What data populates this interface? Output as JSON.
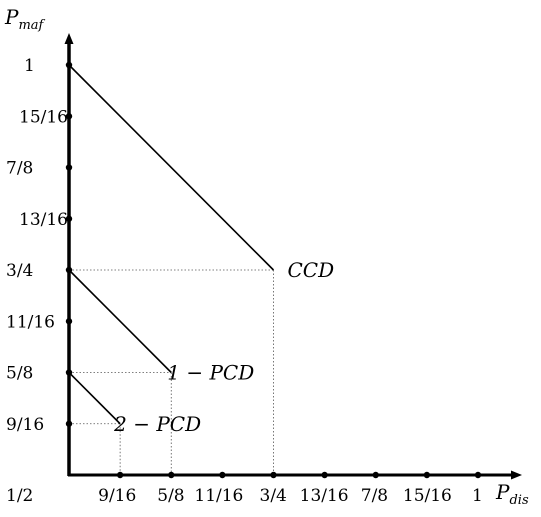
{
  "chart_data": {
    "type": "line",
    "x_axis": {
      "label_main": "P",
      "label_sub": "dis",
      "range": [
        0.5,
        1.0
      ],
      "ticks": [
        0.5625,
        0.625,
        0.6875,
        0.75,
        0.8125,
        0.875,
        0.9375,
        1.0
      ],
      "tick_labels": [
        "9/16",
        "5/8",
        "11/16",
        "3/4",
        "13/16",
        "7/8",
        "15/16",
        "1"
      ]
    },
    "y_axis": {
      "label_main": "P",
      "label_sub": "maf",
      "range": [
        0.5,
        1.0
      ],
      "ticks": [
        0.5625,
        0.625,
        0.6875,
        0.75,
        0.8125,
        0.875,
        0.9375,
        1.0
      ],
      "tick_labels": [
        "9/16",
        "5/8",
        "11/16",
        "3/4",
        "13/16",
        "7/8",
        "15/16",
        "1"
      ]
    },
    "origin_label": "1/2",
    "grid": false,
    "series": [
      {
        "name": "CCD",
        "points": [
          [
            0.5,
            1.0
          ],
          [
            0.75,
            0.75
          ]
        ],
        "label_at": [
          0.75,
          0.75
        ]
      },
      {
        "name": "1 − PCD",
        "points": [
          [
            0.5,
            0.75
          ],
          [
            0.625,
            0.625
          ]
        ],
        "label_at": [
          0.625,
          0.625
        ]
      },
      {
        "name": "2 − PCD",
        "points": [
          [
            0.5,
            0.625
          ],
          [
            0.5625,
            0.5625
          ]
        ],
        "label_at": [
          0.5625,
          0.5625
        ]
      }
    ]
  }
}
